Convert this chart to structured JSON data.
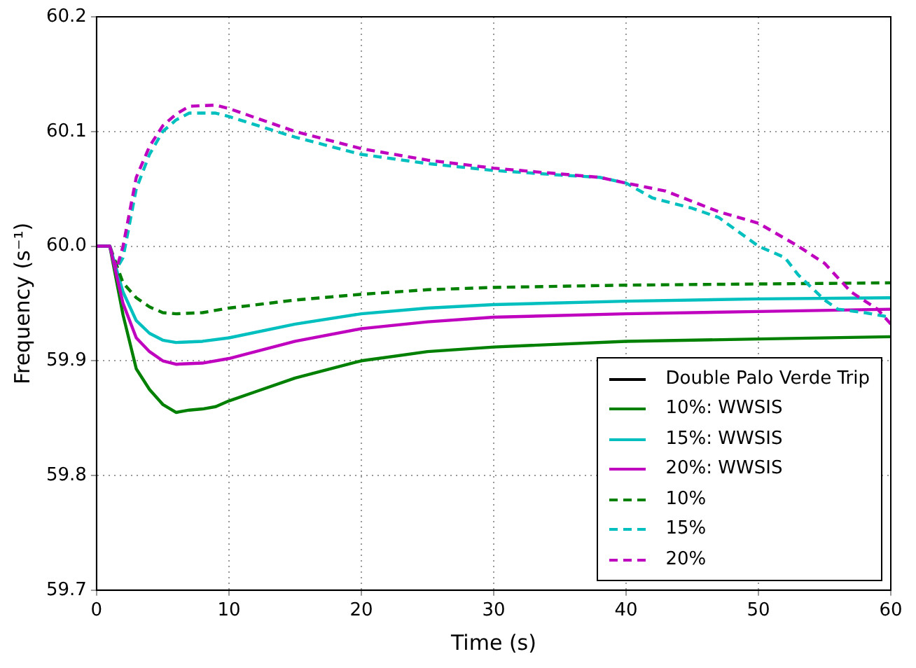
{
  "chart_data": {
    "type": "line",
    "xlabel": "Time (s)",
    "ylabel": "Frequency (s⁻¹)",
    "xlim": [
      0,
      60
    ],
    "xticks": [
      0,
      10,
      20,
      30,
      40,
      50,
      60
    ],
    "ylim": [
      59.7,
      60.2
    ],
    "yticks": [
      59.7,
      59.8,
      59.9,
      {
        "value": 60,
        "label": "60.0"
      },
      60.1,
      60.2
    ],
    "grid": true,
    "legend": "bottom right",
    "marker": "none",
    "series": [
      {
        "name": "Double Palo Verde Trip",
        "color": "#000000",
        "line_style": "solid"
      },
      {
        "name": "10%: WWSIS",
        "color": "#008000",
        "line_style": "solid",
        "x": [
          0,
          1,
          2,
          3,
          4,
          5,
          6,
          7,
          8,
          9,
          10,
          12,
          15,
          20,
          25,
          30,
          40,
          50,
          60
        ],
        "values": [
          60.0,
          60.0,
          59.94,
          59.893,
          59.875,
          59.862,
          59.855,
          59.857,
          59.858,
          59.86,
          59.865,
          59.873,
          59.885,
          59.9,
          59.908,
          59.912,
          59.917,
          59.919,
          59.921
        ]
      },
      {
        "name": "15%: WWSIS",
        "color": "#00bfbf",
        "line_style": "solid",
        "x": [
          0,
          1,
          2,
          3,
          4,
          5,
          6,
          8,
          10,
          15,
          20,
          25,
          30,
          40,
          50,
          60
        ],
        "values": [
          60.0,
          60.0,
          59.96,
          59.935,
          59.924,
          59.918,
          59.916,
          59.917,
          59.92,
          59.932,
          59.941,
          59.946,
          59.949,
          59.952,
          59.954,
          59.955
        ]
      },
      {
        "name": "20%: WWSIS",
        "color": "#bf00bf",
        "line_style": "solid",
        "x": [
          0,
          1,
          2,
          3,
          4,
          5,
          6,
          8,
          10,
          15,
          20,
          25,
          30,
          40,
          50,
          60
        ],
        "values": [
          60.0,
          60.0,
          59.95,
          59.92,
          59.908,
          59.9,
          59.897,
          59.898,
          59.902,
          59.917,
          59.928,
          59.934,
          59.938,
          59.941,
          59.943,
          59.945
        ]
      },
      {
        "name": "10%",
        "color": "#008000",
        "line_style": "dashed",
        "x": [
          0,
          1,
          2,
          3,
          4,
          5,
          6,
          8,
          10,
          15,
          20,
          25,
          30,
          40,
          50,
          60
        ],
        "values": [
          60.0,
          60.0,
          59.968,
          59.955,
          59.947,
          59.942,
          59.941,
          59.942,
          59.946,
          59.953,
          59.958,
          59.962,
          59.964,
          59.966,
          59.967,
          59.968
        ]
      },
      {
        "name": "15%",
        "color": "#00bfbf",
        "line_style": "dashed",
        "x": [
          0,
          1,
          1.5,
          2,
          3,
          4,
          5,
          6,
          7,
          9,
          10,
          15,
          20,
          25,
          30,
          35,
          38,
          40,
          42,
          45,
          47,
          50,
          52,
          53,
          55,
          56,
          58,
          60
        ],
        "values": [
          60.0,
          60.0,
          59.98,
          59.99,
          60.05,
          60.08,
          60.1,
          60.11,
          60.116,
          60.116,
          60.113,
          60.095,
          60.08,
          60.072,
          60.066,
          60.062,
          60.06,
          60.055,
          60.042,
          60.033,
          60.025,
          60.0,
          59.99,
          59.975,
          59.953,
          59.945,
          59.942,
          59.938
        ]
      },
      {
        "name": "20%",
        "color": "#bf00bf",
        "line_style": "dashed",
        "x": [
          0,
          1,
          1.5,
          2,
          3,
          4,
          5,
          6,
          7,
          9,
          10,
          15,
          20,
          25,
          30,
          38,
          40,
          43,
          47,
          50,
          53,
          55,
          57,
          59,
          60
        ],
        "values": [
          60.0,
          60.0,
          59.98,
          60.0,
          60.06,
          60.087,
          60.105,
          60.115,
          60.122,
          60.123,
          60.12,
          60.1,
          60.085,
          60.075,
          60.068,
          60.06,
          60.055,
          60.048,
          60.03,
          60.02,
          60.0,
          59.985,
          59.96,
          59.945,
          59.932
        ]
      }
    ]
  }
}
